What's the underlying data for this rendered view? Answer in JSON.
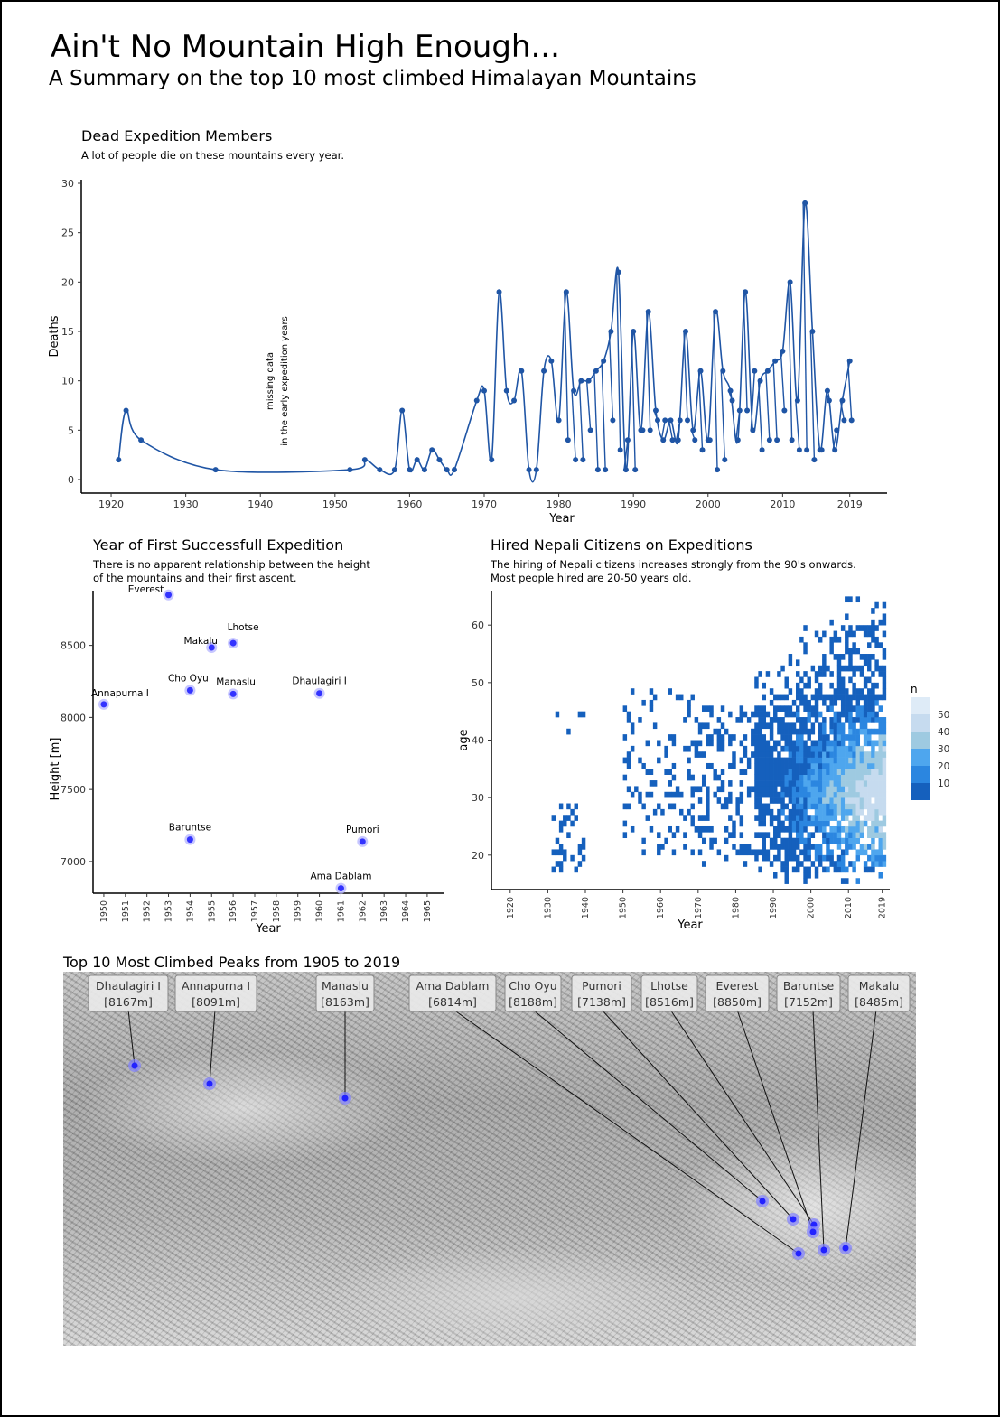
{
  "title": "Ain't No Mountain High Enough...",
  "subtitle": "A Summary on the top 10 most climbed Himalayan Mountains",
  "chart_data": [
    {
      "type": "line",
      "title": "Dead Expedition Members",
      "subtitle": "A lot of people die on these mountains every year.",
      "xlabel": "Year",
      "ylabel": "Deaths",
      "xlim": [
        1916,
        2024
      ],
      "ylim": [
        0,
        30
      ],
      "x_ticks": [
        1920,
        1930,
        1940,
        1950,
        1960,
        1970,
        1980,
        1990,
        2000,
        2010,
        2019
      ],
      "y_ticks": [
        0,
        5,
        10,
        15,
        20,
        25,
        30
      ],
      "annotation": [
        "missing data",
        "in the early expedition years"
      ],
      "color": "#1f55a5",
      "grid": false,
      "x": [
        1921,
        1922,
        1924,
        1934,
        1952,
        1954,
        1956,
        1958,
        1959,
        1960,
        1961,
        1962,
        1963,
        1964,
        1965,
        1966,
        1969,
        1970,
        1971,
        1972,
        1973,
        1974,
        1975,
        1976,
        1977,
        1978,
        1979,
        1980,
        1981,
        1982,
        1983,
        1984,
        1985,
        1986,
        1987,
        1988,
        1989,
        1990,
        1991,
        1992,
        1993,
        1994,
        1995,
        1996,
        1997,
        1998,
        1999,
        2000,
        2001,
        2002,
        2003,
        2004,
        2005,
        2006,
        2007,
        2008,
        2009,
        2010,
        2011,
        2012,
        2013,
        2014,
        2015,
        2016,
        2017,
        2018,
        2019
      ],
      "y": [
        2,
        7,
        4,
        1,
        1,
        2,
        1,
        1,
        7,
        1,
        2,
        1,
        3,
        2,
        1,
        1,
        8,
        9,
        2,
        19,
        9,
        8,
        11,
        1,
        1,
        11,
        12,
        6,
        19,
        9,
        10,
        10,
        11,
        12,
        15,
        21,
        1,
        15,
        5,
        17,
        7,
        4,
        6,
        4,
        15,
        5,
        11,
        4,
        17,
        11,
        9,
        4,
        19,
        5,
        10,
        11,
        12,
        13,
        20,
        8,
        28,
        15,
        3,
        9,
        3,
        8,
        12
      ],
      "x2": [
        1981,
        1982,
        1983,
        1984,
        1985,
        1986,
        1987,
        1988,
        1989,
        1990,
        1991,
        1992,
        1993,
        1994,
        1995,
        1996,
        1997,
        1998,
        1999,
        2000,
        2001,
        2002,
        2003,
        2004,
        2005,
        2006,
        2007,
        2008,
        2009,
        2010,
        2011,
        2012,
        2013,
        2014,
        2015,
        2016,
        2017,
        2018,
        2019
      ],
      "y2": [
        4,
        2,
        2,
        5,
        1,
        1,
        6,
        3,
        4,
        1,
        5,
        5,
        6,
        6,
        4,
        6,
        6,
        4,
        3,
        4,
        1,
        2,
        8,
        7,
        7,
        11,
        3,
        4,
        4,
        7,
        4,
        3,
        3,
        2,
        3,
        8,
        5,
        6,
        6
      ]
    },
    {
      "type": "scatter",
      "title": "Year of First Successfull Expedition",
      "subtitle": "There is no apparent relationship between the height\nof the mountains and their first ascent.",
      "xlabel": "Year",
      "ylabel": "Height [m]",
      "xlim": [
        1949.5,
        1965.8
      ],
      "ylim": [
        6780,
        8880
      ],
      "x_ticks": [
        1950,
        1951,
        1952,
        1953,
        1954,
        1955,
        1956,
        1957,
        1958,
        1959,
        1960,
        1961,
        1962,
        1963,
        1964,
        1965
      ],
      "y_ticks": [
        7000,
        7500,
        8000,
        8500
      ],
      "point_color": "#3333ff",
      "points": [
        {
          "name": "Everest",
          "year": 1953,
          "height": 8850
        },
        {
          "name": "Lhotse",
          "year": 1956,
          "height": 8516
        },
        {
          "name": "Makalu",
          "year": 1955,
          "height": 8485
        },
        {
          "name": "Cho Oyu",
          "year": 1954,
          "height": 8188
        },
        {
          "name": "Manaslu",
          "year": 1956,
          "height": 8163
        },
        {
          "name": "Dhaulagiri I",
          "year": 1960,
          "height": 8167
        },
        {
          "name": "Annapurna I",
          "year": 1950,
          "height": 8091
        },
        {
          "name": "Baruntse",
          "year": 1954,
          "height": 7152
        },
        {
          "name": "Pumori",
          "year": 1962,
          "height": 7138
        },
        {
          "name": "Ama Dablam",
          "year": 1961,
          "height": 6814
        }
      ]
    },
    {
      "type": "heatmap",
      "title": "Hired Nepali Citizens on Expeditions",
      "subtitle": "The hiring of Nepali citizens increases strongly from the 90's onwards.\nMost people hired are 20-50 years old.",
      "xlabel": "Year",
      "ylabel": "age",
      "xlim": [
        1915,
        2021
      ],
      "ylim": [
        14,
        66
      ],
      "x_ticks": [
        1920,
        1930,
        1940,
        1950,
        1960,
        1970,
        1980,
        1990,
        2000,
        2010,
        2019
      ],
      "y_ticks": [
        20,
        30,
        40,
        50,
        60
      ],
      "legend": {
        "title": "n",
        "values": [
          50,
          40,
          30,
          20,
          10
        ],
        "colors": [
          "#deebf7",
          "#c6dbef",
          "#9ecae1",
          "#4ea6ee",
          "#2b86e0",
          "#1560bd"
        ]
      },
      "note": "cell counts by year and age"
    }
  ],
  "map": {
    "title": "Top 10 Most Climbed Peaks from 1905 to 2019",
    "peak_color": "#2222ff",
    "labels": [
      {
        "name": "Dhaulagiri I",
        "height": "[8167m]"
      },
      {
        "name": "Annapurna I",
        "height": "[8091m]"
      },
      {
        "name": "Manaslu",
        "height": "[8163m]"
      },
      {
        "name": "Ama Dablam",
        "height": "[6814m]"
      },
      {
        "name": "Cho Oyu",
        "height": "[8188m]"
      },
      {
        "name": "Pumori",
        "height": "[7138m]"
      },
      {
        "name": "Lhotse",
        "height": "[8516m]"
      },
      {
        "name": "Everest",
        "height": "[8850m]"
      },
      {
        "name": "Baruntse",
        "height": "[7152m]"
      },
      {
        "name": "Makalu",
        "height": "[8485m]"
      }
    ]
  }
}
